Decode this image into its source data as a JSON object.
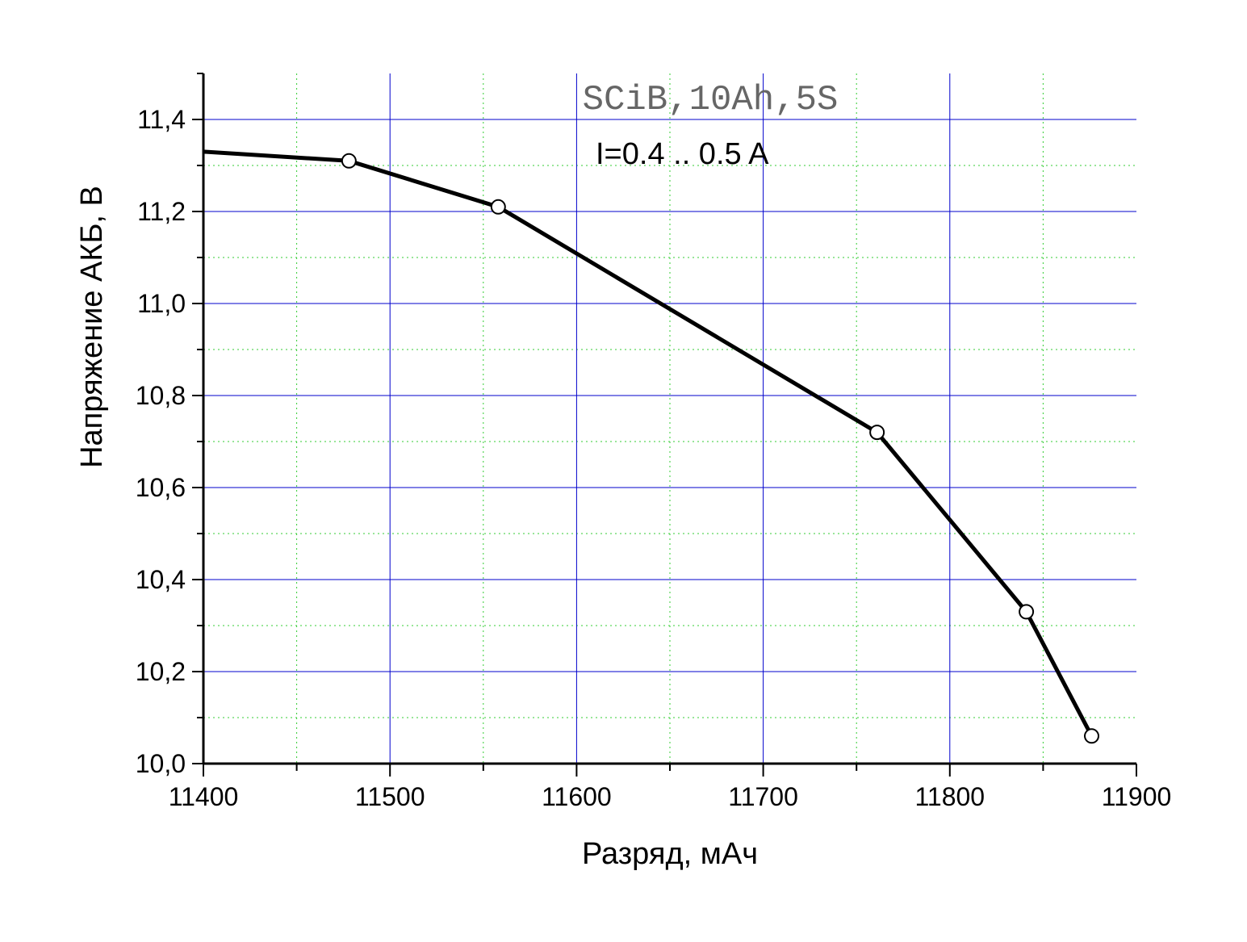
{
  "chart_data": {
    "type": "line",
    "title": "SCiB,10Ah,5S",
    "annotation": "I=0.4 .. 0.5 A",
    "xlabel": "Разряд, мАч",
    "ylabel": "Напряжение АКБ, В",
    "xlim": [
      11400,
      11900
    ],
    "ylim": [
      10.0,
      11.5
    ],
    "x_ticks": [
      11400,
      11500,
      11600,
      11700,
      11800,
      11900
    ],
    "x_tick_labels": [
      "11400",
      "11500",
      "11600",
      "11700",
      "11800",
      "11900"
    ],
    "y_ticks": [
      10.0,
      10.2,
      10.4,
      10.6,
      10.8,
      11.0,
      11.2,
      11.4
    ],
    "y_tick_labels": [
      "10,0",
      "10,2",
      "10,4",
      "10,6",
      "10,8",
      "11,0",
      "11,2",
      "11,4"
    ],
    "grid": true,
    "series": [
      {
        "x": [
          11400,
          11478,
          11558,
          11761,
          11841,
          11876
        ],
        "y": [
          11.33,
          11.31,
          11.21,
          10.72,
          10.33,
          10.06
        ],
        "markers": [
          false,
          true,
          true,
          true,
          true,
          true
        ]
      }
    ],
    "colors": {
      "line": "#000000",
      "major_grid": "#0000cc",
      "minor_grid": "#33cc33",
      "title": "#666666"
    }
  }
}
